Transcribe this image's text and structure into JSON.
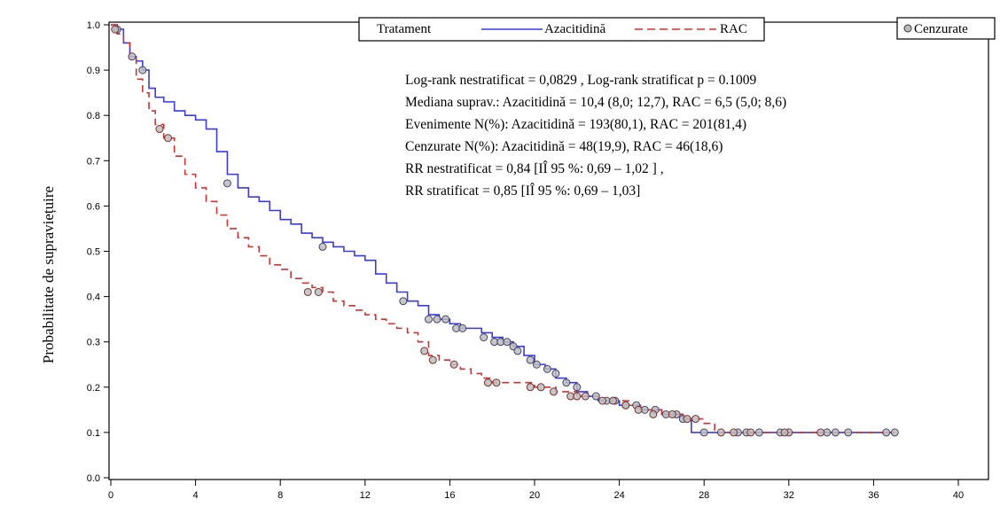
{
  "chart_data": {
    "type": "line",
    "subtype": "kaplan-meier",
    "ylabel": "Probabilitate de supraviețuire",
    "xlabel": "",
    "xlim": [
      0,
      40
    ],
    "ylim": [
      0,
      1.0
    ],
    "x_ticks": [
      0,
      4,
      8,
      12,
      16,
      20,
      24,
      28,
      32,
      36,
      40
    ],
    "y_ticks": [
      "0.0",
      "0.1",
      "0.2",
      "0.3",
      "0.4",
      "0.5",
      "0.6",
      "0.7",
      "0.8",
      "0.9",
      "1.0"
    ],
    "grid": false,
    "legend": {
      "title": "Tratament",
      "placement": "top",
      "entries": [
        {
          "name": "Azacitidină",
          "color": "#3a3ae0",
          "style": "solid"
        },
        {
          "name": "RAC",
          "color": "#cc3333",
          "style": "dashed"
        }
      ],
      "censored_label": "Cenzurate"
    },
    "annotations": [
      "Log-rank nestratificat = 0,0829 , Log-rank stratificat p = 0.1009",
      "Mediana suprav.: Azacitidină = 10,4 (8,0; 12,7), RAC = 6,5 (5,0; 8,6)",
      "Evenimente N(%): Azacitidină = 193(80,1), RAC = 201(81,4)",
      "Cenzurate N(%): Azacitidină = 48(19,9), RAC = 46(18,6)",
      "RR nestratificat = 0,84 [IÎ 95 %: 0,69 – 1,02 ] ,",
      "RR stratificat = 0,85 [IÎ 95 %: 0,69 – 1,03]"
    ],
    "series": [
      {
        "name": "Azacitidină",
        "color": "#3a3ae0",
        "dash": false,
        "points": [
          [
            0,
            1.0
          ],
          [
            0.3,
            0.99
          ],
          [
            0.6,
            0.96
          ],
          [
            0.9,
            0.93
          ],
          [
            1.2,
            0.92
          ],
          [
            1.5,
            0.9
          ],
          [
            1.8,
            0.86
          ],
          [
            2.1,
            0.84
          ],
          [
            2.5,
            0.83
          ],
          [
            3.0,
            0.81
          ],
          [
            3.5,
            0.8
          ],
          [
            4.0,
            0.79
          ],
          [
            4.5,
            0.77
          ],
          [
            5.0,
            0.72
          ],
          [
            5.5,
            0.67
          ],
          [
            6.0,
            0.64
          ],
          [
            6.5,
            0.62
          ],
          [
            7.0,
            0.61
          ],
          [
            7.5,
            0.59
          ],
          [
            8.0,
            0.57
          ],
          [
            8.5,
            0.56
          ],
          [
            9.0,
            0.54
          ],
          [
            9.5,
            0.53
          ],
          [
            10.0,
            0.52
          ],
          [
            10.5,
            0.51
          ],
          [
            11.0,
            0.5
          ],
          [
            11.5,
            0.49
          ],
          [
            12.0,
            0.48
          ],
          [
            12.5,
            0.45
          ],
          [
            13.0,
            0.43
          ],
          [
            13.5,
            0.41
          ],
          [
            14.0,
            0.39
          ],
          [
            14.5,
            0.38
          ],
          [
            15.0,
            0.36
          ],
          [
            15.5,
            0.35
          ],
          [
            16.0,
            0.34
          ],
          [
            16.5,
            0.33
          ],
          [
            17.0,
            0.33
          ],
          [
            17.5,
            0.32
          ],
          [
            18.0,
            0.31
          ],
          [
            18.5,
            0.3
          ],
          [
            19.0,
            0.29
          ],
          [
            19.5,
            0.27
          ],
          [
            20.0,
            0.25
          ],
          [
            20.5,
            0.24
          ],
          [
            21.0,
            0.22
          ],
          [
            21.5,
            0.21
          ],
          [
            22.0,
            0.19
          ],
          [
            22.5,
            0.18
          ],
          [
            23.0,
            0.17
          ],
          [
            23.5,
            0.17
          ],
          [
            24.0,
            0.16
          ],
          [
            24.5,
            0.16
          ],
          [
            25.0,
            0.15
          ],
          [
            25.5,
            0.15
          ],
          [
            26.0,
            0.14
          ],
          [
            26.5,
            0.14
          ],
          [
            27.0,
            0.13
          ],
          [
            27.4,
            0.1
          ],
          [
            28.0,
            0.1
          ],
          [
            37.0,
            0.1
          ]
        ],
        "censored_x": [
          0.3,
          1.0,
          1.5,
          5.5,
          10.0,
          13.8,
          15.0,
          15.4,
          15.8,
          16.3,
          16.6,
          17.6,
          18.1,
          18.4,
          18.7,
          19.0,
          19.2,
          19.8,
          20.1,
          20.6,
          21.0,
          21.5,
          22.0,
          22.9,
          23.4,
          23.8,
          24.3,
          24.8,
          25.2,
          25.7,
          26.2,
          26.7,
          27.0,
          28.0,
          29.6,
          30.0,
          30.6,
          31.6,
          32.0,
          33.8,
          34.2,
          34.8,
          36.6,
          37.0
        ],
        "censored_y": [
          0.99,
          0.93,
          0.9,
          0.65,
          0.51,
          0.39,
          0.35,
          0.35,
          0.35,
          0.33,
          0.33,
          0.31,
          0.3,
          0.3,
          0.3,
          0.29,
          0.28,
          0.26,
          0.25,
          0.24,
          0.23,
          0.21,
          0.2,
          0.18,
          0.17,
          0.17,
          0.16,
          0.16,
          0.15,
          0.15,
          0.14,
          0.14,
          0.13,
          0.1,
          0.1,
          0.1,
          0.1,
          0.1,
          0.1,
          0.1,
          0.1,
          0.1,
          0.1,
          0.1
        ]
      },
      {
        "name": "RAC",
        "color": "#cc3333",
        "dash": true,
        "points": [
          [
            0,
            1.0
          ],
          [
            0.3,
            0.98
          ],
          [
            0.6,
            0.96
          ],
          [
            0.9,
            0.93
          ],
          [
            1.2,
            0.88
          ],
          [
            1.5,
            0.85
          ],
          [
            1.8,
            0.81
          ],
          [
            2.1,
            0.78
          ],
          [
            2.5,
            0.75
          ],
          [
            3.0,
            0.71
          ],
          [
            3.5,
            0.67
          ],
          [
            4.0,
            0.64
          ],
          [
            4.5,
            0.61
          ],
          [
            5.0,
            0.58
          ],
          [
            5.5,
            0.55
          ],
          [
            6.0,
            0.53
          ],
          [
            6.5,
            0.51
          ],
          [
            7.0,
            0.49
          ],
          [
            7.5,
            0.47
          ],
          [
            8.0,
            0.46
          ],
          [
            8.5,
            0.44
          ],
          [
            9.0,
            0.43
          ],
          [
            9.5,
            0.42
          ],
          [
            10.0,
            0.41
          ],
          [
            10.5,
            0.39
          ],
          [
            11.0,
            0.38
          ],
          [
            11.5,
            0.37
          ],
          [
            12.0,
            0.36
          ],
          [
            12.5,
            0.35
          ],
          [
            13.0,
            0.34
          ],
          [
            13.5,
            0.33
          ],
          [
            14.0,
            0.32
          ],
          [
            14.5,
            0.3
          ],
          [
            15.0,
            0.27
          ],
          [
            15.5,
            0.26
          ],
          [
            16.0,
            0.25
          ],
          [
            16.5,
            0.24
          ],
          [
            17.0,
            0.23
          ],
          [
            17.5,
            0.22
          ],
          [
            18.0,
            0.21
          ],
          [
            19.0,
            0.21
          ],
          [
            20.0,
            0.2
          ],
          [
            21.0,
            0.19
          ],
          [
            22.0,
            0.18
          ],
          [
            23.0,
            0.17
          ],
          [
            24.0,
            0.17
          ],
          [
            24.5,
            0.16
          ],
          [
            25.0,
            0.15
          ],
          [
            26.0,
            0.14
          ],
          [
            27.0,
            0.13
          ],
          [
            28.0,
            0.12
          ],
          [
            28.5,
            0.1
          ],
          [
            37.0,
            0.1
          ]
        ],
        "censored_x": [
          0.2,
          2.3,
          2.7,
          9.3,
          9.8,
          14.8,
          15.2,
          16.2,
          17.8,
          18.2,
          19.8,
          20.3,
          20.9,
          21.7,
          22.0,
          22.4,
          23.2,
          23.7,
          24.3,
          24.9,
          25.6,
          26.5,
          27.2,
          27.6,
          28.8,
          29.4,
          30.2,
          31.8,
          33.5
        ],
        "censored_y": [
          0.99,
          0.77,
          0.75,
          0.41,
          0.41,
          0.28,
          0.26,
          0.25,
          0.21,
          0.21,
          0.2,
          0.2,
          0.19,
          0.18,
          0.18,
          0.18,
          0.17,
          0.17,
          0.16,
          0.15,
          0.14,
          0.14,
          0.13,
          0.13,
          0.1,
          0.1,
          0.1,
          0.1,
          0.1
        ]
      }
    ]
  }
}
